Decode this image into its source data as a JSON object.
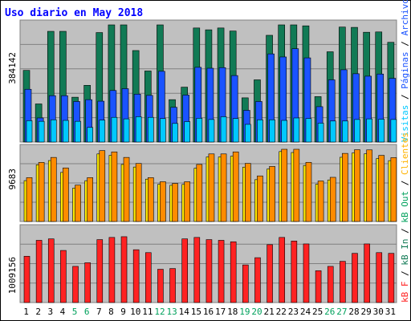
{
  "title": "Uso diario en May 2018",
  "colors": {
    "title": "#0000ff",
    "panel_bg": "#c0c0c0",
    "panel_border": "#808080",
    "gridline": "#808080",
    "visits": "#00c8ff",
    "pages": "#1a53ff",
    "hits": "#117a55",
    "visitors": "#ffea00",
    "bandwidth": "#ff2222",
    "weekend": "#00a15c",
    "weekday": "#000000"
  },
  "legend": {
    "accesos": "Accesos",
    "archivos": "Archivos",
    "paginas": "Páginas",
    "visitas": "Visitas",
    "clientes": "Clientes",
    "kb_out": "kB Out",
    "kb_in": "kB In",
    "kb_f": "kB F",
    "separator": " / "
  },
  "chart_data": {
    "type": "bar",
    "title": "Uso diario en May 2018",
    "days": [
      "1",
      "2",
      "3",
      "4",
      "5",
      "6",
      "7",
      "8",
      "9",
      "10",
      "11",
      "12",
      "13",
      "14",
      "15",
      "16",
      "17",
      "18",
      "19",
      "20",
      "21",
      "22",
      "23",
      "24",
      "25",
      "26",
      "27",
      "28",
      "29",
      "30",
      "31"
    ],
    "weekend_days": [
      "5",
      "6",
      "12",
      "13",
      "19",
      "20",
      "26",
      "27"
    ],
    "panels": [
      {
        "axis_label": "384142",
        "axis_max": 384142,
        "series": [
          {
            "name": "Accesos",
            "key": "hits",
            "values": [
              235000,
              125000,
              363000,
              363000,
              147000,
              186000,
              359000,
              388000,
              388000,
              300000,
              233000,
              423000,
              139000,
              180000,
              374000,
              368000,
              374000,
              364000,
              145000,
              204000,
              350000,
              420000,
              390000,
              381000,
              149000,
              296000,
              377000,
              376000,
              360000,
              361000,
              327000
            ]
          },
          {
            "name": "Archivos",
            "key": "pages",
            "values": [
              173000,
              79000,
              152000,
              152000,
              133000,
              139000,
              134000,
              169000,
              175000,
              157000,
              153000,
              232000,
              114000,
              154000,
              245000,
              242000,
              244000,
              218000,
              104000,
              133000,
              289000,
              279000,
              306000,
              276000,
              116000,
              204000,
              237000,
              224000,
              216000,
              223000,
              209000
            ]
          },
          {
            "name": "Páginas",
            "key": "visits",
            "values": [
              70000,
              68000,
              73000,
              71000,
              68000,
              48000,
              72000,
              81000,
              76000,
              83000,
              81000,
              77000,
              61000,
              67000,
              78000,
              74000,
              83000,
              77000,
              58000,
              73000,
              73000,
              71000,
              79000,
              77000,
              62000,
              69000,
              69000,
              74000,
              76000,
              75000,
              74000
            ]
          },
          {
            "name": "Visitas",
            "key": "visits_lite",
            "values": [
              0,
              0,
              0,
              0,
              0,
              0,
              0,
              0,
              0,
              0,
              0,
              0,
              0,
              0,
              0,
              0,
              0,
              0,
              0,
              0,
              0,
              0,
              0,
              0,
              0,
              0,
              0,
              0,
              0,
              0,
              0
            ]
          }
        ]
      },
      {
        "axis_label": "9683",
        "axis_max": 9683,
        "series": [
          {
            "name": "Clientes",
            "key": "visitors_dark",
            "values": [
              5880,
              7920,
              8590,
              7180,
              4880,
              5880,
              9500,
              9330,
              8590,
              7780,
              5880,
              5330,
              5100,
              5330,
              7650,
              9060,
              9060,
              9330,
              7790,
              6110,
              7380,
              9900,
              9790,
              7930,
              5430,
              5920,
              9130,
              9620,
              9600,
              8860,
              8560
            ]
          },
          {
            "name": "Clientes",
            "key": "visitors",
            "values": [
              5480,
              7600,
              8170,
              6580,
              4480,
              5470,
              9060,
              8870,
              7650,
              7300,
              5680,
              4980,
              4850,
              4970,
              7140,
              8650,
              8650,
              8750,
              7290,
              5610,
              7040,
              9380,
              9250,
              7510,
              5000,
              5570,
              8610,
              9190,
              9080,
              8440,
              8160
            ]
          }
        ]
      },
      {
        "axis_label": "1009156",
        "axis_max": 1009156,
        "series": [
          {
            "name": "kB F",
            "key": "bandwidth",
            "values": [
              640000,
              860000,
              880000,
              720000,
              500000,
              550000,
              870000,
              900000,
              910000,
              730000,
              690000,
              460000,
              470000,
              880000,
              900000,
              870000,
              860000,
              840000,
              520000,
              620000,
              800000,
              900000,
              850000,
              810000,
              440000,
              500000,
              570000,
              680000,
              810000,
              690000,
              680000
            ]
          }
        ]
      }
    ]
  }
}
